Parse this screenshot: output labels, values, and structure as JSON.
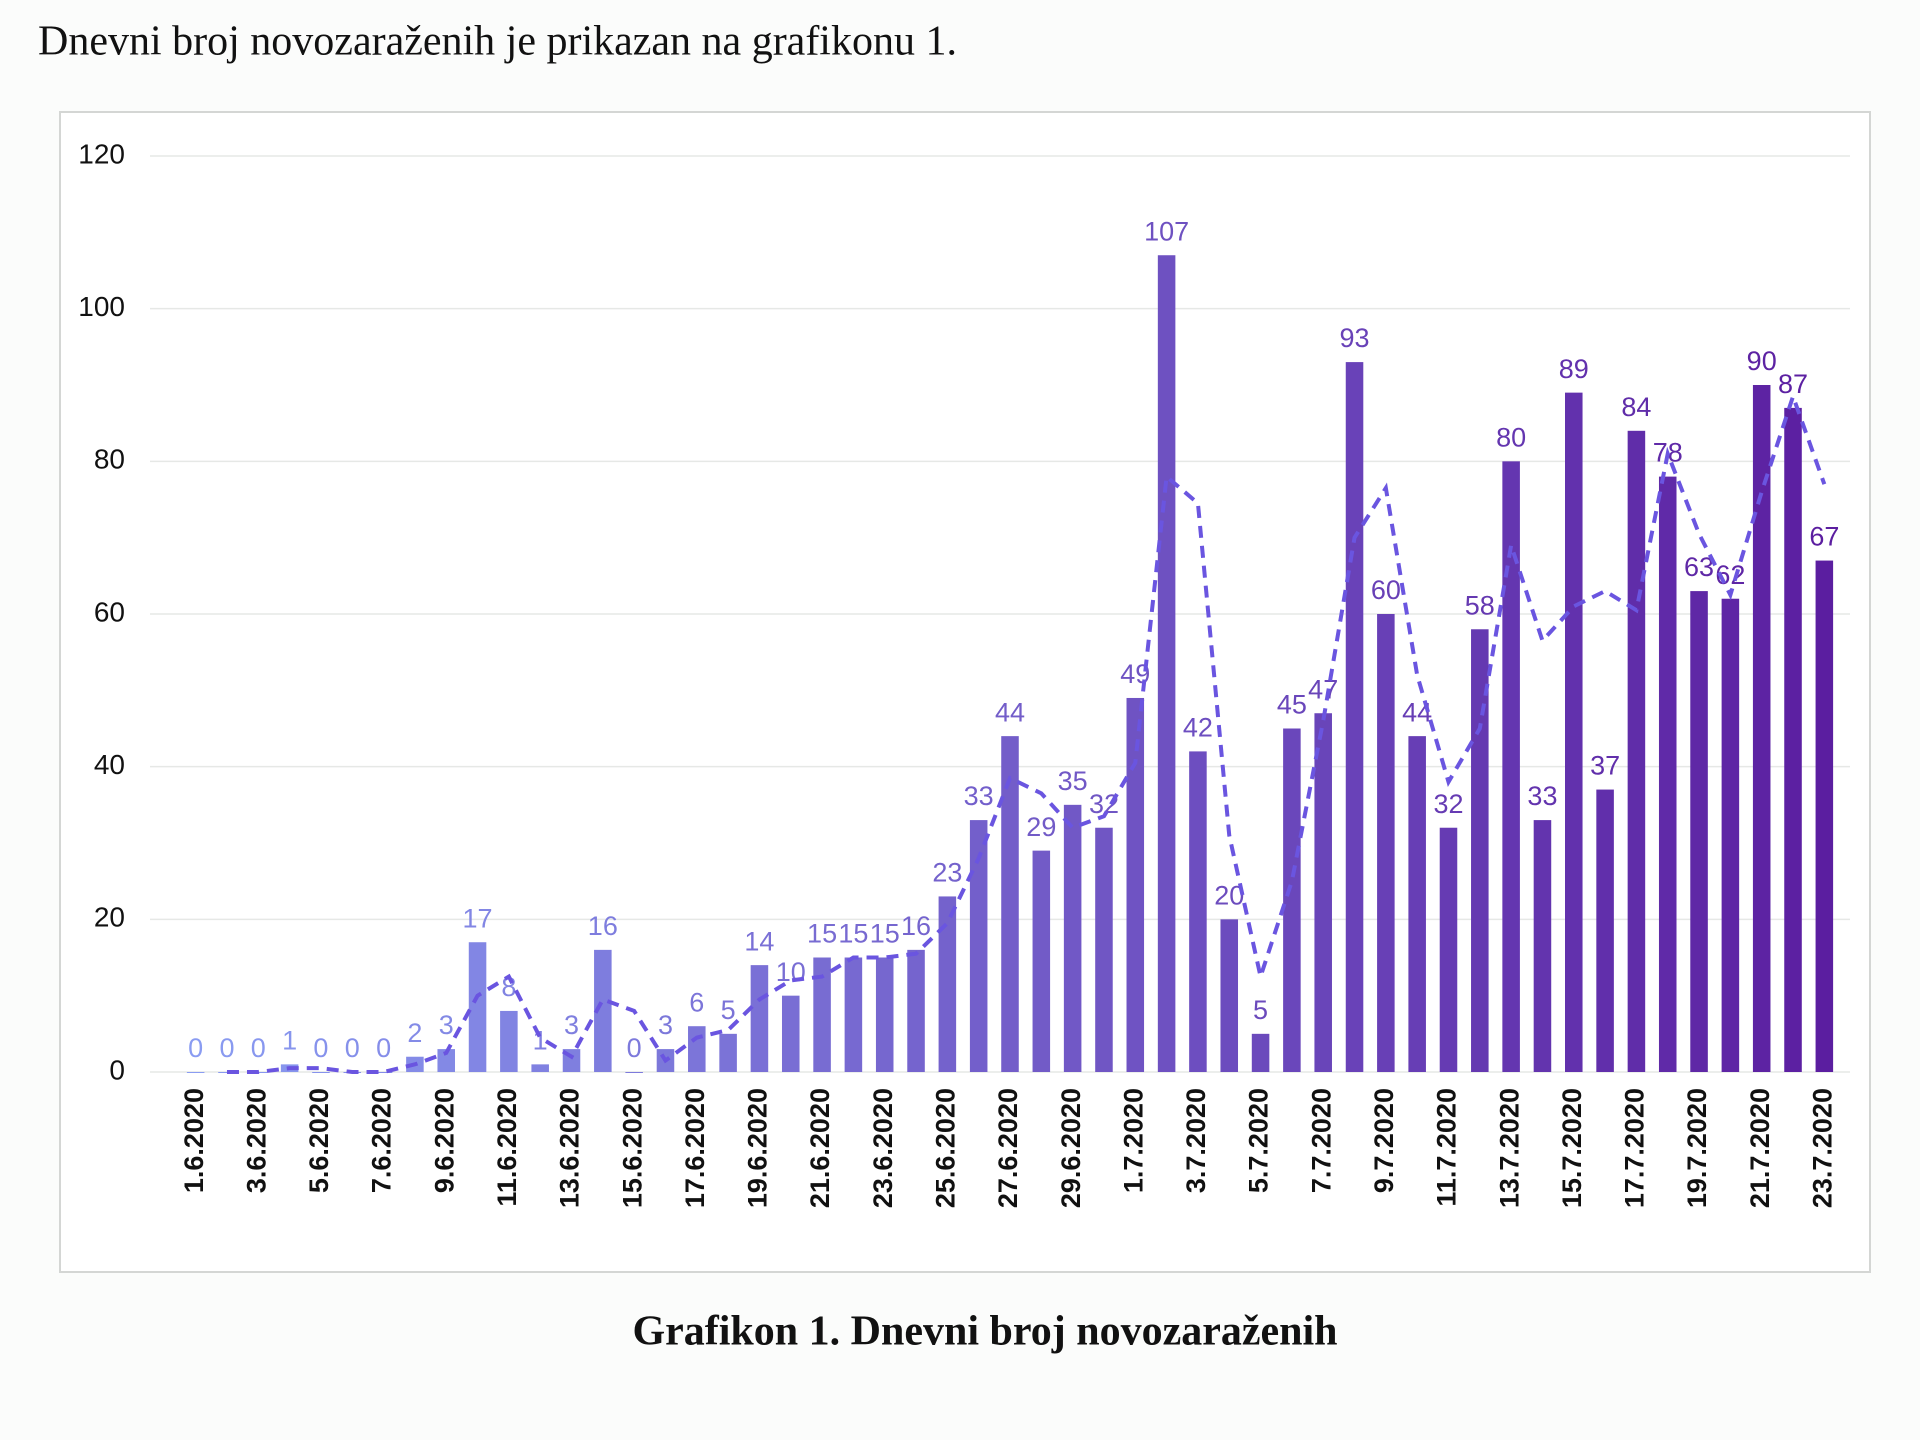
{
  "heading": "Dnevni broj novozaraženih je prikazan na grafikonu 1.",
  "caption": "Grafikon 1. Dnevni broj novozaraženih",
  "chart_data": {
    "type": "bar",
    "categories": [
      "1.6.2020",
      null,
      "3.6.2020",
      null,
      "5.6.2020",
      null,
      "7.6.2020",
      null,
      "9.6.2020",
      null,
      "11.6.2020",
      null,
      "13.6.2020",
      null,
      "15.6.2020",
      null,
      "17.6.2020",
      null,
      "19.6.2020",
      null,
      "21.6.2020",
      null,
      "23.6.2020",
      null,
      "25.6.2020",
      null,
      "27.6.2020",
      null,
      "29.6.2020",
      null,
      "1.7.2020",
      null,
      "3.7.2020",
      null,
      "5.7.2020",
      null,
      "7.7.2020",
      null,
      "9.7.2020",
      null,
      "11.7.2020",
      null,
      "13.7.2020",
      null,
      "15.7.2020",
      null,
      "17.7.2020",
      null,
      "19.7.2020",
      null,
      "21.7.2020",
      null,
      "23.7.2020"
    ],
    "series": [
      {
        "type": "bar",
        "colors": [
          "#8a9cf2",
          "#5b1ea0"
        ],
        "data_labels": true,
        "values": [
          0,
          0,
          0,
          1,
          0,
          0,
          0,
          2,
          3,
          17,
          8,
          1,
          3,
          16,
          0,
          3,
          6,
          5,
          14,
          10,
          15,
          15,
          15,
          16,
          23,
          33,
          44,
          29,
          35,
          32,
          49,
          107,
          42,
          20,
          5,
          45,
          47,
          93,
          60,
          44,
          32,
          58,
          80,
          33,
          89,
          37,
          84,
          78,
          63,
          62,
          90,
          87,
          67
        ]
      },
      {
        "type": "line",
        "color": "#6a55e0",
        "dashed": true,
        "values": [
          null,
          0,
          0,
          0.5,
          0.5,
          0,
          0,
          1,
          2.5,
          10,
          12.5,
          4.5,
          2,
          9.5,
          8,
          1.5,
          4.5,
          5.5,
          9.5,
          12,
          12.5,
          15,
          15,
          15.5,
          19.5,
          28,
          38.5,
          36.5,
          32,
          33.5,
          40.5,
          78,
          74.5,
          31,
          12.5,
          25,
          46,
          70,
          76.5,
          52,
          38,
          45,
          69,
          56.5,
          61,
          63,
          60.5,
          81,
          70.5,
          62.5,
          76,
          88.5,
          77
        ]
      }
    ],
    "ylim": [
      0,
      120
    ],
    "yticks": [
      0,
      20,
      40,
      60,
      80,
      100,
      120
    ],
    "grid": true
  }
}
